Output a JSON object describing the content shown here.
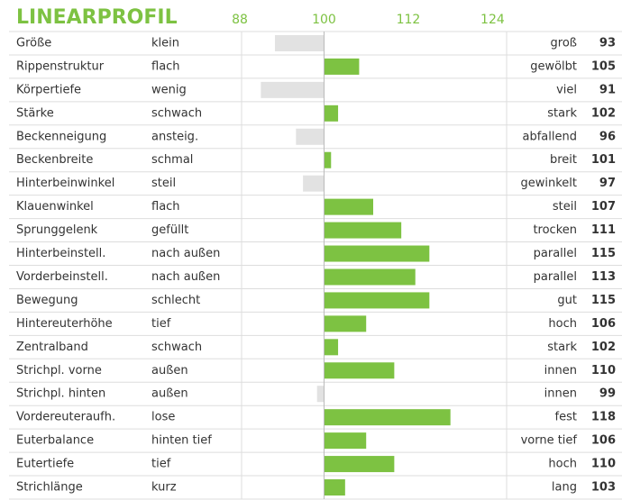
{
  "chart_data": {
    "type": "bar",
    "title": "LINEARPROFIL",
    "categories": [
      "Größe",
      "Rippenstruktur",
      "Körpertiefe",
      "Stärke",
      "Beckenneigung",
      "Beckenbreite",
      "Hinterbeinwinkel",
      "Klauenwinkel",
      "Sprunggelenk",
      "Hinterbeinstell.",
      "Vorderbeinstell.",
      "Bewegung",
      "Hintereuterhöhe",
      "Zentralband",
      "Strichpl. vorne",
      "Strichpl. hinten",
      "Vordereuteraufh.",
      "Euterbalance",
      "Eutertiefe",
      "Strichlänge"
    ],
    "left_labels": [
      "klein",
      "flach",
      "wenig",
      "schwach",
      "ansteig.",
      "schmal",
      "steil",
      "flach",
      "gefüllt",
      "nach außen",
      "nach außen",
      "schlecht",
      "tief",
      "schwach",
      "außen",
      "außen",
      "lose",
      "hinten tief",
      "tief",
      "kurz"
    ],
    "right_labels": [
      "groß",
      "gewölbt",
      "viel",
      "stark",
      "abfallend",
      "breit",
      "gewinkelt",
      "steil",
      "trocken",
      "parallel",
      "parallel",
      "gut",
      "hoch",
      "stark",
      "innen",
      "innen",
      "fest",
      "vorne tief",
      "hoch",
      "lang"
    ],
    "values": [
      93,
      105,
      91,
      102,
      96,
      101,
      97,
      107,
      111,
      115,
      113,
      115,
      106,
      102,
      110,
      99,
      118,
      106,
      110,
      103
    ],
    "baseline": 100,
    "xlim": [
      88,
      126
    ],
    "xticks": [
      88,
      100,
      112,
      124
    ],
    "title_color": "#7dc242",
    "positive_color": "#7dc242",
    "negative_color": "#e2e2e2"
  }
}
